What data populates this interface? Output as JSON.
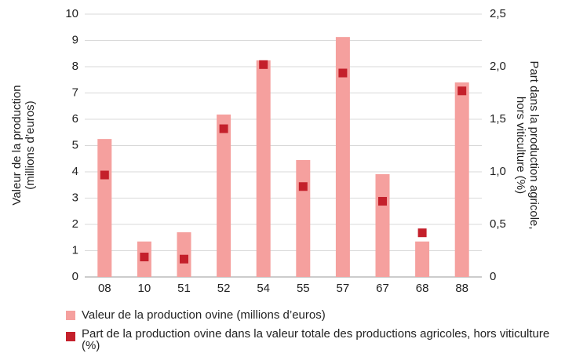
{
  "chart_data": {
    "type": "bar",
    "categories": [
      "08",
      "10",
      "51",
      "52",
      "54",
      "55",
      "57",
      "67",
      "68",
      "88"
    ],
    "series": [
      {
        "name": "Valeur de la production ovine (millions d’euros)",
        "color": "#f5a09e",
        "values": [
          5.25,
          1.35,
          1.7,
          6.18,
          8.24,
          4.45,
          9.13,
          3.91,
          1.35,
          7.4
        ]
      },
      {
        "name": "Part de la production ovine dans la valeur totale des productions agricoles, hors viticulture (%)",
        "color": "#c4202b",
        "type": "scatter",
        "axis": "y2",
        "values": [
          0.97,
          0.19,
          0.17,
          1.41,
          2.02,
          0.86,
          1.94,
          0.72,
          0.42,
          1.77
        ]
      }
    ],
    "ylabel": [
      "Valeur de la production",
      "(millions d’euros)"
    ],
    "y2label": [
      "Part dans la production agricole,",
      "hors viticulture (%)"
    ],
    "ylim": [
      0,
      10
    ],
    "yticks": [
      0,
      1,
      2,
      3,
      4,
      5,
      6,
      7,
      8,
      9,
      10
    ],
    "y2lim": [
      0,
      2.5
    ],
    "y2ticks": [
      0,
      {
        "value": 0.5,
        "label": "0,5"
      },
      {
        "value": 1,
        "label": "1,0"
      },
      {
        "value": 1.5,
        "label": "1,5"
      },
      {
        "value": 2,
        "label": "2,0"
      },
      {
        "value": 2.5,
        "label": "2,5"
      }
    ],
    "grid": true,
    "legend": "bottom"
  }
}
